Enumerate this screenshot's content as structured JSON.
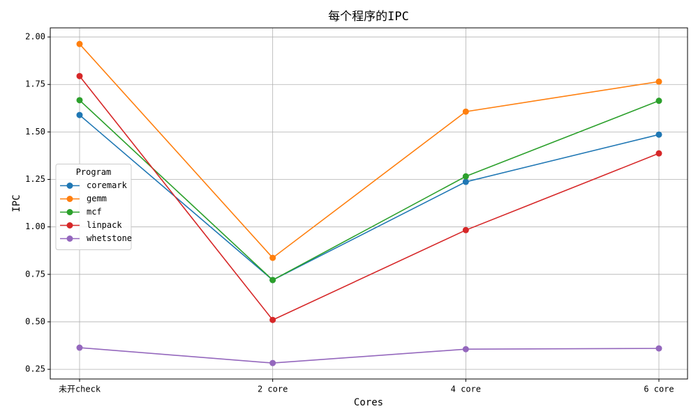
{
  "chart_data": {
    "type": "line",
    "title": "每个程序的IPC",
    "x_label": "Cores",
    "y_label": "IPC",
    "categories": [
      "未开check",
      "2 core",
      "4 core",
      "6 core"
    ],
    "series": [
      {
        "name": "coremark",
        "color": "#1f77b4",
        "values": [
          1.589,
          0.72,
          1.237,
          1.486
        ]
      },
      {
        "name": "gemm",
        "color": "#ff7f0e",
        "values": [
          1.963,
          0.837,
          1.607,
          1.765
        ]
      },
      {
        "name": "mcf",
        "color": "#2ca02c",
        "values": [
          1.667,
          0.72,
          1.266,
          1.664
        ]
      },
      {
        "name": "linpack",
        "color": "#d62728",
        "values": [
          1.794,
          0.51,
          0.983,
          1.387
        ]
      },
      {
        "name": "whetstone",
        "color": "#9467bd",
        "values": [
          0.364,
          0.283,
          0.356,
          0.36
        ]
      }
    ],
    "ylim": [
      0.199,
      2.048
    ],
    "yticks": [
      {
        "value": 0.25,
        "label": "0.25"
      },
      {
        "value": 0.5,
        "label": "0.50"
      },
      {
        "value": 0.75,
        "label": "0.75"
      },
      {
        "value": 1,
        "label": "1.00"
      },
      {
        "value": 1.25,
        "label": "1.25"
      },
      {
        "value": 1.5,
        "label": "1.50"
      },
      {
        "value": 1.75,
        "label": "1.75"
      },
      {
        "value": 2,
        "label": "2.00"
      }
    ],
    "grid": true,
    "legend_title": "Program",
    "legend_position": "center left"
  }
}
